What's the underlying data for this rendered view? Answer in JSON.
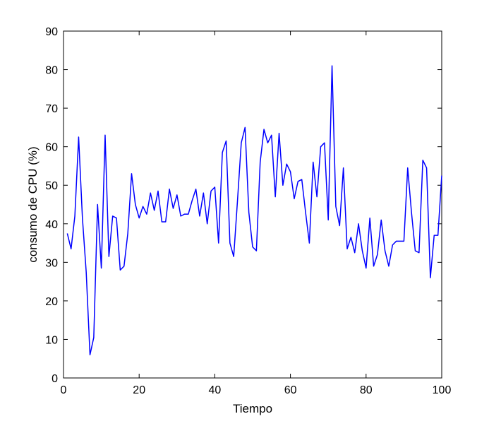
{
  "chart_data": {
    "type": "line",
    "title": "",
    "xlabel": "Tiempo",
    "ylabel": "consumo de CPU (%)",
    "xlim": [
      0,
      100
    ],
    "ylim": [
      0,
      90
    ],
    "xticks": [
      0,
      20,
      40,
      60,
      80,
      100
    ],
    "yticks": [
      0,
      10,
      20,
      30,
      40,
      50,
      60,
      70,
      80,
      90
    ],
    "xtick_labels": [
      "0",
      "20",
      "40",
      "60",
      "80",
      "100"
    ],
    "ytick_labels": [
      "0",
      "10",
      "20",
      "30",
      "40",
      "50",
      "60",
      "70",
      "80",
      "90"
    ],
    "grid": false,
    "legend": "none",
    "line_color": "#0000ff",
    "series": [
      {
        "x": [
          1,
          2,
          3,
          4,
          5,
          6,
          7,
          8,
          9,
          10,
          11,
          12,
          13,
          14,
          15,
          16,
          17,
          18,
          19,
          20,
          21,
          22,
          23,
          24,
          25,
          26,
          27,
          28,
          29,
          30,
          31,
          32,
          33,
          34,
          35,
          36,
          37,
          38,
          39,
          40,
          41,
          42,
          43,
          44,
          45,
          46,
          47,
          48,
          49,
          50,
          51,
          52,
          53,
          54,
          55,
          56,
          57,
          58,
          59,
          60,
          61,
          62,
          63,
          64,
          65,
          66,
          67,
          68,
          69,
          70,
          71,
          72,
          73,
          74,
          75,
          76,
          77,
          78,
          79,
          80,
          81,
          82,
          83,
          84,
          85,
          86,
          87,
          88,
          89,
          90,
          91,
          92,
          93,
          94,
          95,
          96,
          97,
          98,
          99,
          100
        ],
        "values": [
          37.5,
          33.5,
          42,
          62.5,
          41.5,
          27.5,
          6,
          10.5,
          45,
          28.5,
          63,
          31.5,
          42,
          41.5,
          28,
          29,
          37.5,
          53,
          45,
          41.5,
          44.5,
          42.5,
          48,
          43.5,
          48.5,
          40.5,
          40.5,
          49,
          44,
          47.5,
          42,
          42.5,
          42.5,
          46,
          49,
          42,
          48,
          40,
          48.5,
          49.5,
          35,
          58.5,
          61.5,
          35,
          31.5,
          46,
          61,
          65,
          43,
          34,
          33,
          56,
          64.5,
          61,
          63,
          47,
          63.5,
          50,
          55.5,
          53.5,
          46.5,
          51,
          51.5,
          43,
          35,
          56,
          47,
          60,
          61,
          41,
          81,
          44.5,
          39.5,
          54.5,
          33.5,
          36.5,
          32.5,
          40,
          33,
          28.5,
          41.5,
          29,
          32,
          41,
          33,
          29,
          34.5,
          35.5,
          35.5,
          35.5,
          54.5,
          43,
          33,
          32.5,
          56.5,
          54.5,
          26,
          37,
          37,
          52.5
        ]
      }
    ]
  }
}
